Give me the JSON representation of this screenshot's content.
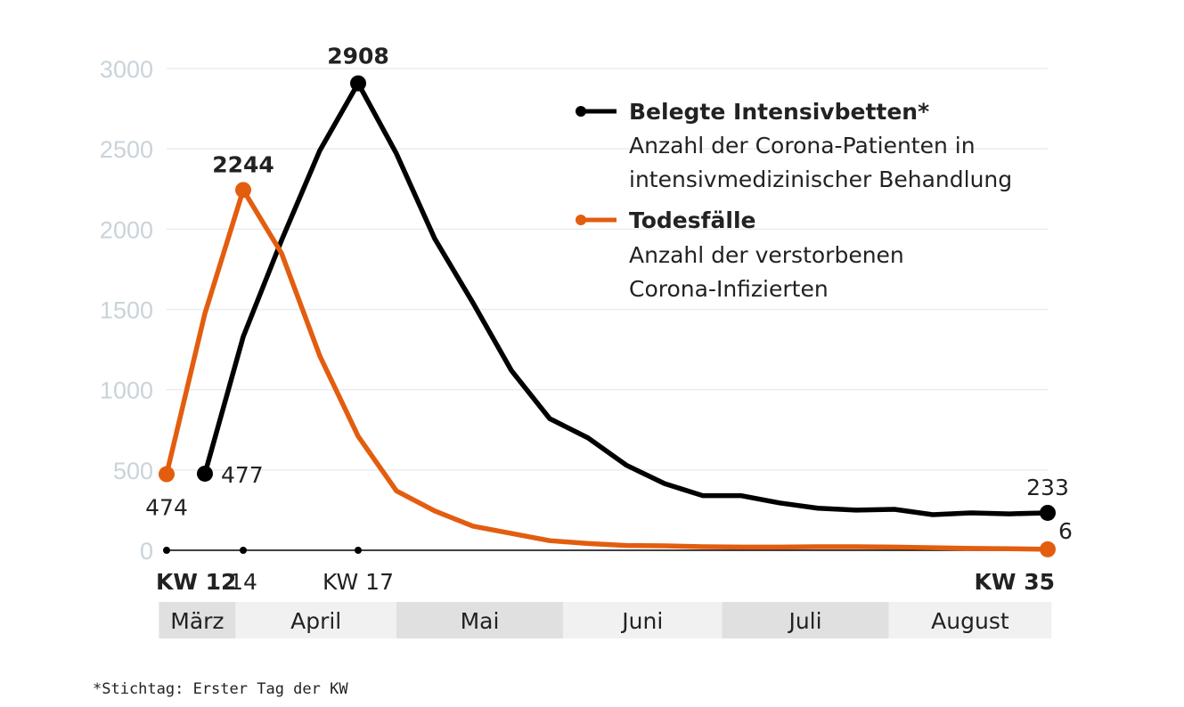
{
  "chart_data": {
    "type": "line",
    "x": [
      12,
      13,
      14,
      15,
      16,
      17,
      18,
      19,
      20,
      21,
      22,
      23,
      24,
      25,
      26,
      27,
      28,
      29,
      30,
      31,
      32,
      33,
      34,
      35
    ],
    "series": [
      {
        "name": "Belegte Intensivbetten*",
        "description": "Anzahl der Corona-Patienten in intensivmedizinischer Behandlung",
        "color": "#000000",
        "values": [
          null,
          477,
          1330,
          1930,
          2490,
          2908,
          2470,
          1940,
          1540,
          1120,
          820,
          700,
          530,
          415,
          340,
          340,
          295,
          262,
          250,
          255,
          222,
          233,
          227,
          233
        ]
      },
      {
        "name": "Todesfälle",
        "description": "Anzahl der verstorbenen Corona-Infizierten",
        "color": "#e35d0f",
        "values": [
          474,
          1475,
          2244,
          1850,
          1210,
          710,
          370,
          245,
          150,
          105,
          60,
          42,
          30,
          28,
          22,
          20,
          20,
          22,
          22,
          20,
          16,
          12,
          10,
          6
        ]
      }
    ],
    "data_labels": [
      {
        "series": 1,
        "x": 12,
        "text": "474"
      },
      {
        "series": 0,
        "x": 13,
        "text": "477"
      },
      {
        "series": 1,
        "x": 14,
        "text": "2244"
      },
      {
        "series": 0,
        "x": 17,
        "text": "2908"
      },
      {
        "series": 0,
        "x": 35,
        "text": "233"
      },
      {
        "series": 1,
        "x": 35,
        "text": "6"
      }
    ],
    "yticks": [
      "0",
      "500",
      "1000",
      "1500",
      "2000",
      "2500",
      "3000"
    ],
    "ylim": [
      0,
      3000
    ],
    "xlim": [
      12,
      35
    ],
    "xtick_labels": [
      {
        "x": 12,
        "text": "KW 12",
        "bold": true
      },
      {
        "x": 14,
        "text": "14",
        "bold": false
      },
      {
        "x": 17,
        "text": "KW 17",
        "bold": false
      },
      {
        "x": 35,
        "text": "KW 35",
        "bold": true
      }
    ],
    "months": [
      {
        "label": "März",
        "from": 11.8,
        "to": 13.8
      },
      {
        "label": "April",
        "from": 13.8,
        "to": 18
      },
      {
        "label": "Mai",
        "from": 18,
        "to": 22.35
      },
      {
        "label": "Juni",
        "from": 22.35,
        "to": 26.5
      },
      {
        "label": "Juli",
        "from": 26.5,
        "to": 30.85
      },
      {
        "label": "August",
        "from": 30.85,
        "to": 35.1
      }
    ],
    "grid": true,
    "legend_position": "top-right",
    "footnote": "*Stichtag: Erster Tag der KW"
  }
}
